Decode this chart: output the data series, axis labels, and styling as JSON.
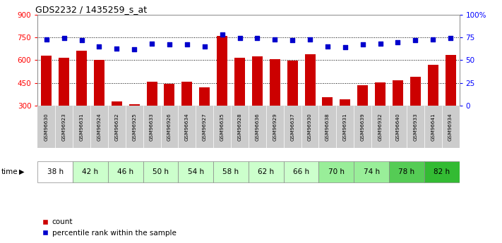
{
  "title": "GDS2232 / 1435259_s_at",
  "samples": [
    "GSM96630",
    "GSM96923",
    "GSM96631",
    "GSM96924",
    "GSM96632",
    "GSM96925",
    "GSM96633",
    "GSM96926",
    "GSM96634",
    "GSM96927",
    "GSM96635",
    "GSM96928",
    "GSM96636",
    "GSM96929",
    "GSM96637",
    "GSM96930",
    "GSM96638",
    "GSM96931",
    "GSM96639",
    "GSM96932",
    "GSM96640",
    "GSM96933",
    "GSM96641",
    "GSM96934"
  ],
  "count_values": [
    630,
    615,
    660,
    600,
    330,
    310,
    460,
    443,
    460,
    420,
    760,
    615,
    625,
    605,
    597,
    640,
    355,
    340,
    435,
    452,
    465,
    490,
    570,
    635
  ],
  "percentile_values": [
    73,
    74,
    72,
    65,
    63,
    62,
    68,
    67,
    67,
    65,
    78,
    74,
    74,
    73,
    72,
    73,
    65,
    64,
    67,
    68,
    70,
    72,
    73,
    74
  ],
  "time_groups": [
    {
      "label": "38 h",
      "indices": [
        0,
        1
      ],
      "color": "#ffffff"
    },
    {
      "label": "42 h",
      "indices": [
        2,
        3
      ],
      "color": "#ccffcc"
    },
    {
      "label": "46 h",
      "indices": [
        4,
        5
      ],
      "color": "#ccffcc"
    },
    {
      "label": "50 h",
      "indices": [
        6,
        7
      ],
      "color": "#ccffcc"
    },
    {
      "label": "54 h",
      "indices": [
        8,
        9
      ],
      "color": "#ccffcc"
    },
    {
      "label": "58 h",
      "indices": [
        10,
        11
      ],
      "color": "#ccffcc"
    },
    {
      "label": "62 h",
      "indices": [
        12,
        13
      ],
      "color": "#ccffcc"
    },
    {
      "label": "66 h",
      "indices": [
        14,
        15
      ],
      "color": "#ccffcc"
    },
    {
      "label": "70 h",
      "indices": [
        16,
        17
      ],
      "color": "#99ee99"
    },
    {
      "label": "74 h",
      "indices": [
        18,
        19
      ],
      "color": "#99ee99"
    },
    {
      "label": "78 h",
      "indices": [
        20,
        21
      ],
      "color": "#55cc55"
    },
    {
      "label": "82 h",
      "indices": [
        22,
        23
      ],
      "color": "#33bb33"
    }
  ],
  "bar_color": "#cc0000",
  "dot_color": "#0000cc",
  "ylim_left": [
    300,
    900
  ],
  "ylim_right": [
    0,
    100
  ],
  "yticks_left": [
    300,
    450,
    600,
    750,
    900
  ],
  "yticks_right": [
    0,
    25,
    50,
    75,
    100
  ],
  "ylabel_right_labels": [
    "0",
    "25",
    "50",
    "75",
    "100%"
  ],
  "hlines": [
    450,
    600,
    750
  ],
  "bg_color": "#ffffff",
  "plot_bg": "#ffffff",
  "legend_count_label": "count",
  "legend_pct_label": "percentile rank within the sample",
  "time_label": "time"
}
